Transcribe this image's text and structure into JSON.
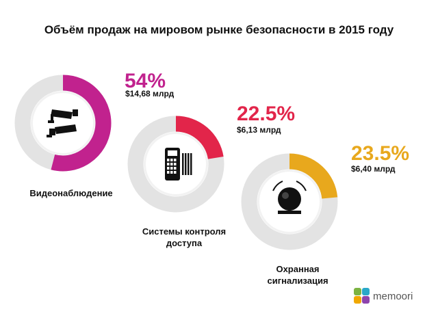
{
  "title": "Объём продаж на мировом рынке безопасности в 2015 году",
  "logo": {
    "text": "memoori"
  },
  "chart_data": {
    "type": "pie",
    "title": "Объём продаж на мировом рынке безопасности в 2015 году",
    "series": [
      {
        "label_lines": [
          "Видеонаблюдение"
        ],
        "percent_label": "54%",
        "value": 54,
        "amount_label": "$14,68 млрд",
        "amount": 14.68,
        "color": "#c1228e",
        "icon": "cctv-camera-icon"
      },
      {
        "label_lines": [
          "Системы контроля",
          "доступа"
        ],
        "percent_label": "22.5%",
        "value": 22.5,
        "amount_label": "$6,13 млрд",
        "amount": 6.13,
        "color": "#e2254a",
        "icon": "access-control-keypad-icon"
      },
      {
        "label_lines": [
          "Охранная",
          "сигнализация"
        ],
        "percent_label": "23.5%",
        "value": 23.5,
        "amount_label": "$6,40 млрд",
        "amount": 6.4,
        "color": "#e8a81d",
        "icon": "alarm-bell-icon"
      }
    ],
    "legend": "none"
  }
}
